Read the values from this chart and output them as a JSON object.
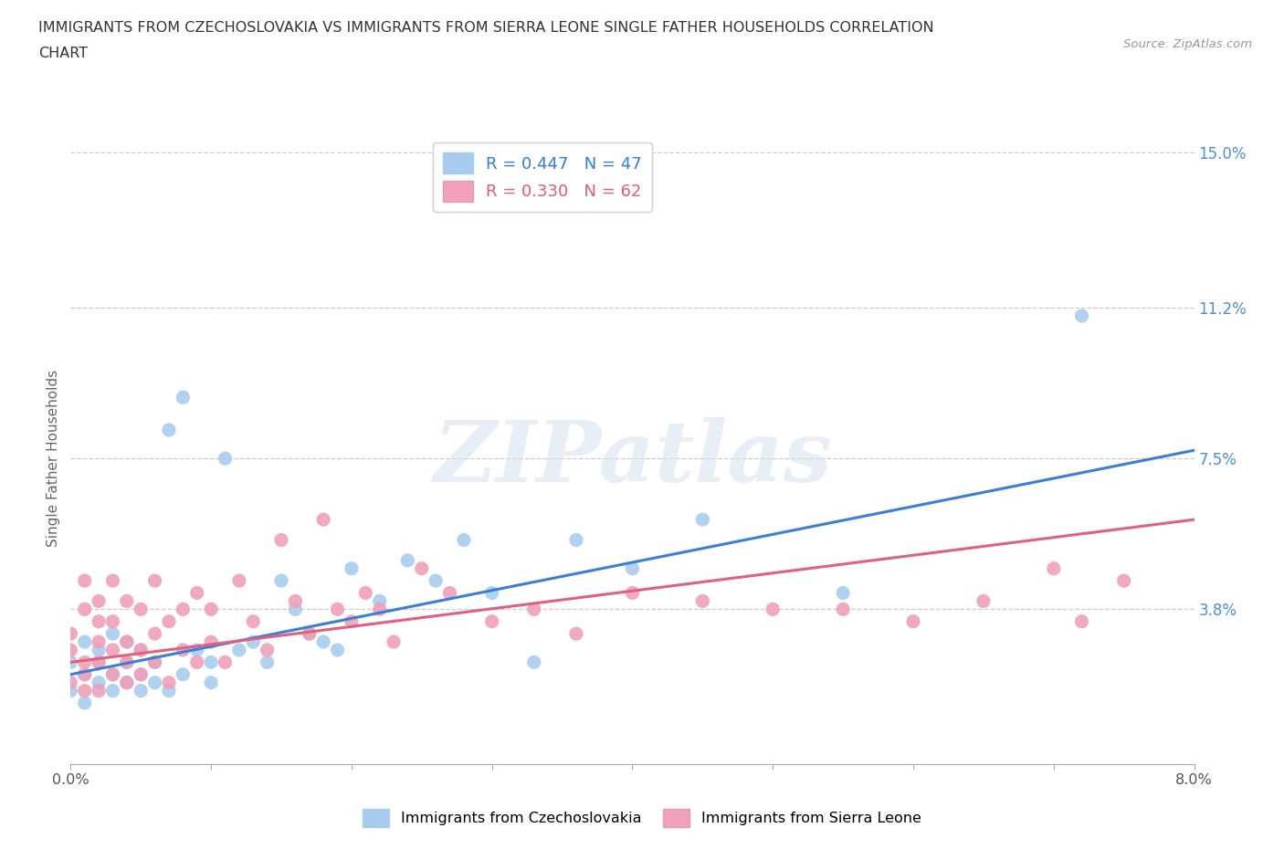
{
  "title_line1": "IMMIGRANTS FROM CZECHOSLOVAKIA VS IMMIGRANTS FROM SIERRA LEONE SINGLE FATHER HOUSEHOLDS CORRELATION",
  "title_line2": "CHART",
  "source_text": "Source: ZipAtlas.com",
  "ylabel": "Single Father Households",
  "xlim": [
    0.0,
    0.08
  ],
  "ylim": [
    0.0,
    0.15
  ],
  "yticks": [
    0.0,
    0.038,
    0.075,
    0.112,
    0.15
  ],
  "ytick_labels": [
    "",
    "3.8%",
    "7.5%",
    "11.2%",
    "15.0%"
  ],
  "xticks": [
    0.0,
    0.01,
    0.02,
    0.03,
    0.04,
    0.05,
    0.06,
    0.07,
    0.08
  ],
  "xtick_end_labels": {
    "0": "0.0%",
    "8": "8.0%"
  },
  "grid_color": "#c8c8d8",
  "background_color": "#ffffff",
  "watermark_text": "ZIPatlas",
  "series": [
    {
      "name": "Immigrants from Czechoslovakia",
      "color": "#a8ccee",
      "line_color": "#3a7fd5",
      "R": 0.447,
      "N": 47,
      "x": [
        0.0,
        0.0,
        0.001,
        0.001,
        0.001,
        0.002,
        0.002,
        0.002,
        0.003,
        0.003,
        0.003,
        0.004,
        0.004,
        0.004,
        0.005,
        0.005,
        0.005,
        0.006,
        0.006,
        0.007,
        0.007,
        0.008,
        0.008,
        0.009,
        0.01,
        0.01,
        0.011,
        0.012,
        0.013,
        0.014,
        0.015,
        0.016,
        0.017,
        0.018,
        0.019,
        0.02,
        0.022,
        0.024,
        0.026,
        0.028,
        0.03,
        0.033,
        0.036,
        0.04,
        0.045,
        0.055,
        0.072
      ],
      "y": [
        0.025,
        0.018,
        0.022,
        0.03,
        0.015,
        0.028,
        0.02,
        0.025,
        0.018,
        0.032,
        0.022,
        0.025,
        0.02,
        0.03,
        0.022,
        0.018,
        0.028,
        0.02,
        0.025,
        0.018,
        0.082,
        0.09,
        0.022,
        0.028,
        0.02,
        0.025,
        0.075,
        0.028,
        0.03,
        0.025,
        0.045,
        0.038,
        0.032,
        0.03,
        0.028,
        0.048,
        0.04,
        0.05,
        0.045,
        0.055,
        0.042,
        0.025,
        0.055,
        0.048,
        0.06,
        0.042,
        0.11
      ]
    },
    {
      "name": "Immigrants from Sierra Leone",
      "color": "#f0a0b8",
      "line_color": "#e06080",
      "R": 0.33,
      "N": 62,
      "x": [
        0.0,
        0.0,
        0.0,
        0.001,
        0.001,
        0.001,
        0.001,
        0.001,
        0.002,
        0.002,
        0.002,
        0.002,
        0.002,
        0.003,
        0.003,
        0.003,
        0.003,
        0.004,
        0.004,
        0.004,
        0.004,
        0.005,
        0.005,
        0.005,
        0.006,
        0.006,
        0.006,
        0.007,
        0.007,
        0.008,
        0.008,
        0.009,
        0.009,
        0.01,
        0.01,
        0.011,
        0.012,
        0.013,
        0.014,
        0.015,
        0.016,
        0.017,
        0.018,
        0.019,
        0.02,
        0.021,
        0.022,
        0.023,
        0.025,
        0.027,
        0.03,
        0.033,
        0.036,
        0.04,
        0.045,
        0.05,
        0.055,
        0.06,
        0.065,
        0.07,
        0.072,
        0.075
      ],
      "y": [
        0.02,
        0.028,
        0.032,
        0.018,
        0.025,
        0.038,
        0.045,
        0.022,
        0.03,
        0.025,
        0.04,
        0.018,
        0.035,
        0.022,
        0.028,
        0.035,
        0.045,
        0.025,
        0.03,
        0.02,
        0.04,
        0.022,
        0.038,
        0.028,
        0.025,
        0.032,
        0.045,
        0.02,
        0.035,
        0.028,
        0.038,
        0.025,
        0.042,
        0.03,
        0.038,
        0.025,
        0.045,
        0.035,
        0.028,
        0.055,
        0.04,
        0.032,
        0.06,
        0.038,
        0.035,
        0.042,
        0.038,
        0.03,
        0.048,
        0.042,
        0.035,
        0.038,
        0.032,
        0.042,
        0.04,
        0.038,
        0.038,
        0.035,
        0.04,
        0.048,
        0.035,
        0.045
      ]
    }
  ],
  "reg_line_blue": {
    "x0": 0.0,
    "x1": 0.08,
    "y0": 0.022,
    "y1": 0.077
  },
  "reg_line_pink": {
    "x0": 0.0,
    "x1": 0.08,
    "y0": 0.025,
    "y1": 0.06
  }
}
